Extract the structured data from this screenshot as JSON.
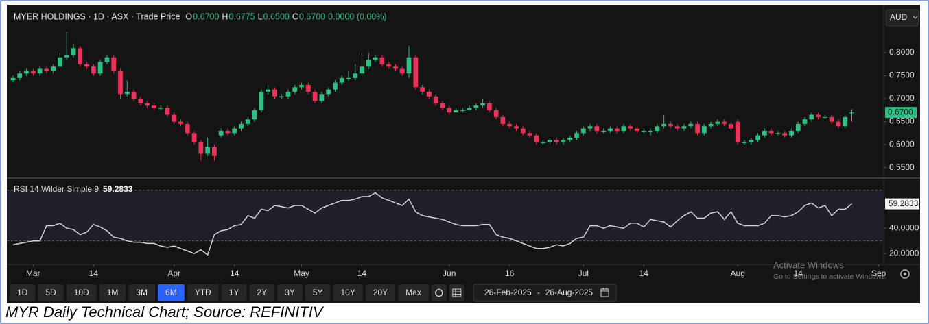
{
  "header": {
    "title": "MYER HOLDINGS · 1D · ASX · Trade Price",
    "ohlc": [
      {
        "label": "O",
        "value": "0.6700"
      },
      {
        "label": "H",
        "value": "0.6775"
      },
      {
        "label": "L",
        "value": "0.6500"
      },
      {
        "label": "C",
        "value": "0.6700"
      }
    ],
    "change": "0.0000 (0.00%)"
  },
  "currency": "AUD",
  "toolbar": {
    "ranges": [
      "1D",
      "5D",
      "10D",
      "1M",
      "3M",
      "6M",
      "YTD",
      "1Y",
      "2Y",
      "3Y",
      "5Y",
      "10Y",
      "20Y",
      "Max"
    ],
    "active": "6M",
    "date_range": {
      "from": "26-Feb-2025",
      "separator": "-",
      "to": "26-Aug-2025"
    }
  },
  "watermark": {
    "title": "Activate Windows",
    "text": "Go to Settings to activate Windows."
  },
  "caption": "MYR Daily Technical Chart; Source: REFINITIV",
  "chart_data": [
    {
      "type": "candlestick",
      "categories": [
        "2025-02-26",
        "2025-02-27",
        "2025-02-28",
        "2025-03-03",
        "2025-03-04",
        "2025-03-05",
        "2025-03-06",
        "2025-03-07",
        "2025-03-10",
        "2025-03-11",
        "2025-03-12",
        "2025-03-13",
        "2025-03-14",
        "2025-03-17",
        "2025-03-18",
        "2025-03-19",
        "2025-03-20",
        "2025-03-21",
        "2025-03-24",
        "2025-03-25",
        "2025-03-26",
        "2025-03-27",
        "2025-03-28",
        "2025-03-31",
        "2025-04-01",
        "2025-04-02",
        "2025-04-03",
        "2025-04-04",
        "2025-04-07",
        "2025-04-08",
        "2025-04-09",
        "2025-04-10",
        "2025-04-11",
        "2025-04-14",
        "2025-04-15",
        "2025-04-16",
        "2025-04-17",
        "2025-04-22",
        "2025-04-23",
        "2025-04-24",
        "2025-04-28",
        "2025-04-29",
        "2025-04-30",
        "2025-05-01",
        "2025-05-02",
        "2025-05-05",
        "2025-05-06",
        "2025-05-07",
        "2025-05-08",
        "2025-05-09",
        "2025-05-12",
        "2025-05-13",
        "2025-05-14",
        "2025-05-15",
        "2025-05-16",
        "2025-05-19",
        "2025-05-20",
        "2025-05-21",
        "2025-05-22",
        "2025-05-23",
        "2025-05-26",
        "2025-05-27",
        "2025-05-28",
        "2025-05-29",
        "2025-05-30",
        "2025-06-02",
        "2025-06-03",
        "2025-06-04",
        "2025-06-05",
        "2025-06-06",
        "2025-06-10",
        "2025-06-11",
        "2025-06-12",
        "2025-06-13",
        "2025-06-16",
        "2025-06-17",
        "2025-06-18",
        "2025-06-19",
        "2025-06-20",
        "2025-06-23",
        "2025-06-24",
        "2025-06-25",
        "2025-06-26",
        "2025-06-27",
        "2025-06-30",
        "2025-07-01",
        "2025-07-02",
        "2025-07-03",
        "2025-07-04",
        "2025-07-07",
        "2025-07-08",
        "2025-07-09",
        "2025-07-10",
        "2025-07-11",
        "2025-07-14",
        "2025-07-15",
        "2025-07-16",
        "2025-07-17",
        "2025-07-18",
        "2025-07-21",
        "2025-07-22",
        "2025-07-23",
        "2025-07-24",
        "2025-07-25",
        "2025-07-28",
        "2025-07-29",
        "2025-07-30",
        "2025-07-31",
        "2025-08-01",
        "2025-08-04",
        "2025-08-05",
        "2025-08-06",
        "2025-08-07",
        "2025-08-08",
        "2025-08-11",
        "2025-08-12",
        "2025-08-13",
        "2025-08-14",
        "2025-08-15",
        "2025-08-18",
        "2025-08-19",
        "2025-08-20",
        "2025-08-21",
        "2025-08-22",
        "2025-08-25",
        "2025-08-26"
      ],
      "open": [
        0.74,
        0.745,
        0.755,
        0.76,
        0.755,
        0.765,
        0.76,
        0.77,
        0.79,
        0.795,
        0.81,
        0.775,
        0.77,
        0.755,
        0.78,
        0.79,
        0.76,
        0.71,
        0.715,
        0.7,
        0.69,
        0.685,
        0.68,
        0.68,
        0.665,
        0.65,
        0.645,
        0.625,
        0.605,
        0.58,
        0.595,
        0.62,
        0.63,
        0.625,
        0.635,
        0.645,
        0.655,
        0.675,
        0.715,
        0.72,
        0.705,
        0.705,
        0.715,
        0.725,
        0.73,
        0.715,
        0.695,
        0.71,
        0.72,
        0.735,
        0.745,
        0.745,
        0.755,
        0.77,
        0.785,
        0.79,
        0.775,
        0.77,
        0.765,
        0.755,
        0.79,
        0.725,
        0.715,
        0.705,
        0.69,
        0.68,
        0.67,
        0.675,
        0.675,
        0.68,
        0.685,
        0.69,
        0.675,
        0.66,
        0.645,
        0.64,
        0.635,
        0.625,
        0.62,
        0.605,
        0.605,
        0.61,
        0.605,
        0.61,
        0.615,
        0.625,
        0.635,
        0.64,
        0.63,
        0.63,
        0.635,
        0.63,
        0.64,
        0.635,
        0.63,
        0.63,
        0.63,
        0.64,
        0.645,
        0.64,
        0.635,
        0.64,
        0.645,
        0.625,
        0.64,
        0.645,
        0.65,
        0.645,
        0.65,
        0.605,
        0.605,
        0.61,
        0.62,
        0.63,
        0.625,
        0.625,
        0.62,
        0.63,
        0.645,
        0.655,
        0.665,
        0.66,
        0.66,
        0.65,
        0.64,
        0.67
      ],
      "high": [
        0.75,
        0.76,
        0.765,
        0.765,
        0.77,
        0.77,
        0.775,
        0.8,
        0.845,
        0.82,
        0.815,
        0.78,
        0.775,
        0.785,
        0.795,
        0.795,
        0.765,
        0.74,
        0.72,
        0.705,
        0.695,
        0.69,
        0.685,
        0.685,
        0.67,
        0.655,
        0.65,
        0.63,
        0.61,
        0.615,
        0.6,
        0.635,
        0.635,
        0.64,
        0.65,
        0.66,
        0.68,
        0.72,
        0.73,
        0.725,
        0.71,
        0.72,
        0.73,
        0.735,
        0.735,
        0.72,
        0.715,
        0.725,
        0.74,
        0.75,
        0.76,
        0.775,
        0.8,
        0.8,
        0.795,
        0.795,
        0.78,
        0.775,
        0.77,
        0.815,
        0.795,
        0.73,
        0.72,
        0.71,
        0.695,
        0.685,
        0.68,
        0.68,
        0.685,
        0.69,
        0.7,
        0.695,
        0.68,
        0.665,
        0.65,
        0.645,
        0.64,
        0.63,
        0.625,
        0.61,
        0.615,
        0.615,
        0.615,
        0.62,
        0.63,
        0.64,
        0.645,
        0.645,
        0.635,
        0.64,
        0.64,
        0.645,
        0.645,
        0.64,
        0.635,
        0.635,
        0.645,
        0.665,
        0.65,
        0.645,
        0.645,
        0.65,
        0.65,
        0.645,
        0.65,
        0.655,
        0.655,
        0.65,
        0.655,
        0.61,
        0.615,
        0.625,
        0.635,
        0.635,
        0.63,
        0.63,
        0.635,
        0.65,
        0.66,
        0.67,
        0.67,
        0.665,
        0.665,
        0.655,
        0.665,
        0.6775
      ],
      "low": [
        0.735,
        0.74,
        0.75,
        0.75,
        0.75,
        0.755,
        0.755,
        0.765,
        0.785,
        0.79,
        0.77,
        0.765,
        0.75,
        0.75,
        0.775,
        0.755,
        0.7,
        0.705,
        0.695,
        0.685,
        0.68,
        0.675,
        0.675,
        0.66,
        0.645,
        0.64,
        0.62,
        0.6,
        0.565,
        0.575,
        0.565,
        0.615,
        0.62,
        0.62,
        0.63,
        0.64,
        0.65,
        0.67,
        0.71,
        0.7,
        0.7,
        0.7,
        0.71,
        0.72,
        0.71,
        0.69,
        0.69,
        0.705,
        0.715,
        0.73,
        0.74,
        0.74,
        0.75,
        0.765,
        0.78,
        0.77,
        0.765,
        0.76,
        0.75,
        0.745,
        0.72,
        0.71,
        0.7,
        0.685,
        0.675,
        0.665,
        0.67,
        0.67,
        0.675,
        0.675,
        0.68,
        0.67,
        0.655,
        0.64,
        0.635,
        0.63,
        0.62,
        0.615,
        0.6,
        0.6,
        0.6,
        0.6,
        0.6,
        0.605,
        0.61,
        0.62,
        0.63,
        0.625,
        0.625,
        0.625,
        0.625,
        0.625,
        0.63,
        0.625,
        0.625,
        0.62,
        0.625,
        0.635,
        0.635,
        0.63,
        0.63,
        0.635,
        0.62,
        0.62,
        0.635,
        0.64,
        0.64,
        0.63,
        0.6,
        0.6,
        0.6,
        0.605,
        0.615,
        0.62,
        0.62,
        0.615,
        0.615,
        0.625,
        0.64,
        0.65,
        0.655,
        0.655,
        0.645,
        0.635,
        0.635,
        0.65
      ],
      "close": [
        0.745,
        0.755,
        0.76,
        0.755,
        0.765,
        0.76,
        0.77,
        0.79,
        0.795,
        0.81,
        0.775,
        0.77,
        0.755,
        0.78,
        0.79,
        0.76,
        0.71,
        0.715,
        0.7,
        0.69,
        0.685,
        0.68,
        0.68,
        0.665,
        0.65,
        0.645,
        0.625,
        0.605,
        0.58,
        0.595,
        0.575,
        0.63,
        0.625,
        0.635,
        0.645,
        0.655,
        0.675,
        0.715,
        0.72,
        0.705,
        0.705,
        0.715,
        0.725,
        0.73,
        0.715,
        0.695,
        0.71,
        0.72,
        0.735,
        0.745,
        0.745,
        0.755,
        0.77,
        0.785,
        0.79,
        0.775,
        0.77,
        0.765,
        0.755,
        0.79,
        0.725,
        0.715,
        0.705,
        0.69,
        0.68,
        0.67,
        0.675,
        0.675,
        0.68,
        0.685,
        0.69,
        0.675,
        0.66,
        0.645,
        0.64,
        0.635,
        0.625,
        0.62,
        0.605,
        0.605,
        0.61,
        0.605,
        0.61,
        0.615,
        0.625,
        0.635,
        0.64,
        0.63,
        0.63,
        0.635,
        0.63,
        0.64,
        0.635,
        0.63,
        0.63,
        0.63,
        0.64,
        0.645,
        0.64,
        0.635,
        0.64,
        0.645,
        0.625,
        0.64,
        0.645,
        0.65,
        0.645,
        0.635,
        0.605,
        0.605,
        0.61,
        0.62,
        0.63,
        0.625,
        0.625,
        0.62,
        0.63,
        0.645,
        0.655,
        0.665,
        0.66,
        0.66,
        0.65,
        0.64,
        0.66,
        0.67
      ],
      "up_color": "#2ebd85",
      "down_color": "#e8335d",
      "ylim": [
        0.53,
        0.9
      ],
      "yticks": [
        {
          "value": 0.55,
          "label": "0.5500"
        },
        {
          "value": 0.6,
          "label": "0.6000"
        },
        {
          "value": 0.65,
          "label": "0.6500"
        },
        {
          "value": 0.7,
          "label": "0.7000"
        },
        {
          "value": 0.75,
          "label": "0.7500"
        },
        {
          "value": 0.8,
          "label": "0.8000"
        }
      ],
      "last_price": {
        "value": 0.67,
        "label": "0.6700"
      },
      "grid": false
    },
    {
      "type": "line",
      "title": "RSI 14 Wilder Simple 9",
      "categories": [
        "2025-02-26",
        "2025-02-27",
        "2025-02-28",
        "2025-03-03",
        "2025-03-04",
        "2025-03-05",
        "2025-03-06",
        "2025-03-07",
        "2025-03-10",
        "2025-03-11",
        "2025-03-12",
        "2025-03-13",
        "2025-03-14",
        "2025-03-17",
        "2025-03-18",
        "2025-03-19",
        "2025-03-20",
        "2025-03-21",
        "2025-03-24",
        "2025-03-25",
        "2025-03-26",
        "2025-03-27",
        "2025-03-28",
        "2025-03-31",
        "2025-04-01",
        "2025-04-02",
        "2025-04-03",
        "2025-04-04",
        "2025-04-07",
        "2025-04-08",
        "2025-04-09",
        "2025-04-10",
        "2025-04-11",
        "2025-04-14",
        "2025-04-15",
        "2025-04-16",
        "2025-04-17",
        "2025-04-22",
        "2025-04-23",
        "2025-04-24",
        "2025-04-28",
        "2025-04-29",
        "2025-04-30",
        "2025-05-01",
        "2025-05-02",
        "2025-05-05",
        "2025-05-06",
        "2025-05-07",
        "2025-05-08",
        "2025-05-09",
        "2025-05-12",
        "2025-05-13",
        "2025-05-14",
        "2025-05-15",
        "2025-05-16",
        "2025-05-19",
        "2025-05-20",
        "2025-05-21",
        "2025-05-22",
        "2025-05-23",
        "2025-05-26",
        "2025-05-27",
        "2025-05-28",
        "2025-05-29",
        "2025-05-30",
        "2025-06-02",
        "2025-06-03",
        "2025-06-04",
        "2025-06-05",
        "2025-06-06",
        "2025-06-10",
        "2025-06-11",
        "2025-06-12",
        "2025-06-13",
        "2025-06-16",
        "2025-06-17",
        "2025-06-18",
        "2025-06-19",
        "2025-06-20",
        "2025-06-23",
        "2025-06-24",
        "2025-06-25",
        "2025-06-26",
        "2025-06-27",
        "2025-06-30",
        "2025-07-01",
        "2025-07-02",
        "2025-07-03",
        "2025-07-04",
        "2025-07-07",
        "2025-07-08",
        "2025-07-09",
        "2025-07-10",
        "2025-07-11",
        "2025-07-14",
        "2025-07-15",
        "2025-07-16",
        "2025-07-17",
        "2025-07-18",
        "2025-07-21",
        "2025-07-22",
        "2025-07-23",
        "2025-07-24",
        "2025-07-25",
        "2025-07-28",
        "2025-07-29",
        "2025-07-30",
        "2025-07-31",
        "2025-08-01",
        "2025-08-04",
        "2025-08-05",
        "2025-08-06",
        "2025-08-07",
        "2025-08-08",
        "2025-08-11",
        "2025-08-12",
        "2025-08-13",
        "2025-08-14",
        "2025-08-15",
        "2025-08-18",
        "2025-08-19",
        "2025-08-20",
        "2025-08-21",
        "2025-08-22",
        "2025-08-25",
        "2025-08-26"
      ],
      "values": [
        27,
        28,
        29,
        30,
        30,
        42,
        42,
        44,
        40,
        39,
        35,
        37,
        43,
        41,
        38,
        33,
        32,
        30,
        29,
        29,
        28,
        28,
        26,
        25,
        26,
        24,
        22,
        20,
        23,
        19,
        35,
        38,
        39,
        42,
        43,
        50,
        48,
        55,
        54,
        58,
        57,
        56,
        58,
        58,
        55,
        52,
        56,
        58,
        60,
        62,
        62,
        63,
        65,
        65,
        68,
        64,
        62,
        60,
        58,
        63,
        53,
        50,
        49,
        48,
        47,
        45,
        43,
        42,
        42,
        42,
        43,
        43,
        35,
        33,
        32,
        30,
        28,
        26,
        24,
        24,
        25,
        27,
        26,
        28,
        32,
        33,
        42,
        42,
        40,
        42,
        41,
        40,
        44,
        44,
        41,
        47,
        46,
        45,
        41,
        46,
        50,
        53,
        48,
        48,
        52,
        53,
        47,
        53,
        44,
        42,
        42,
        42,
        44,
        50,
        50,
        49,
        50,
        53,
        58,
        60,
        56,
        58,
        50,
        55,
        55,
        59.2833
      ],
      "current": 59.2833,
      "color": "#d6d6d6",
      "bands": [
        30,
        70
      ],
      "ylim": [
        12,
        78
      ],
      "yticks": [
        {
          "value": 20,
          "label": "20.0000"
        },
        {
          "value": 40,
          "label": "40.0000"
        }
      ],
      "xticks": [
        {
          "value": "2025-03-03",
          "label": "Mar"
        },
        {
          "value": "2025-03-14",
          "label": "14"
        },
        {
          "value": "2025-04-01",
          "label": "Apr"
        },
        {
          "value": "2025-04-14",
          "label": "14"
        },
        {
          "value": "2025-05-01",
          "label": "May"
        },
        {
          "value": "2025-05-14",
          "label": "14"
        },
        {
          "value": "2025-06-02",
          "label": "Jun"
        },
        {
          "value": "2025-06-16",
          "label": "16"
        },
        {
          "value": "2025-07-01",
          "label": "Jul"
        },
        {
          "value": "2025-07-14",
          "label": "14"
        },
        {
          "value": "2025-08-01",
          "label": "Aug"
        },
        {
          "value": "2025-08-14",
          "label": "14"
        },
        {
          "value": "2025-09-01",
          "label": "Sep"
        }
      ],
      "grid": false
    }
  ]
}
